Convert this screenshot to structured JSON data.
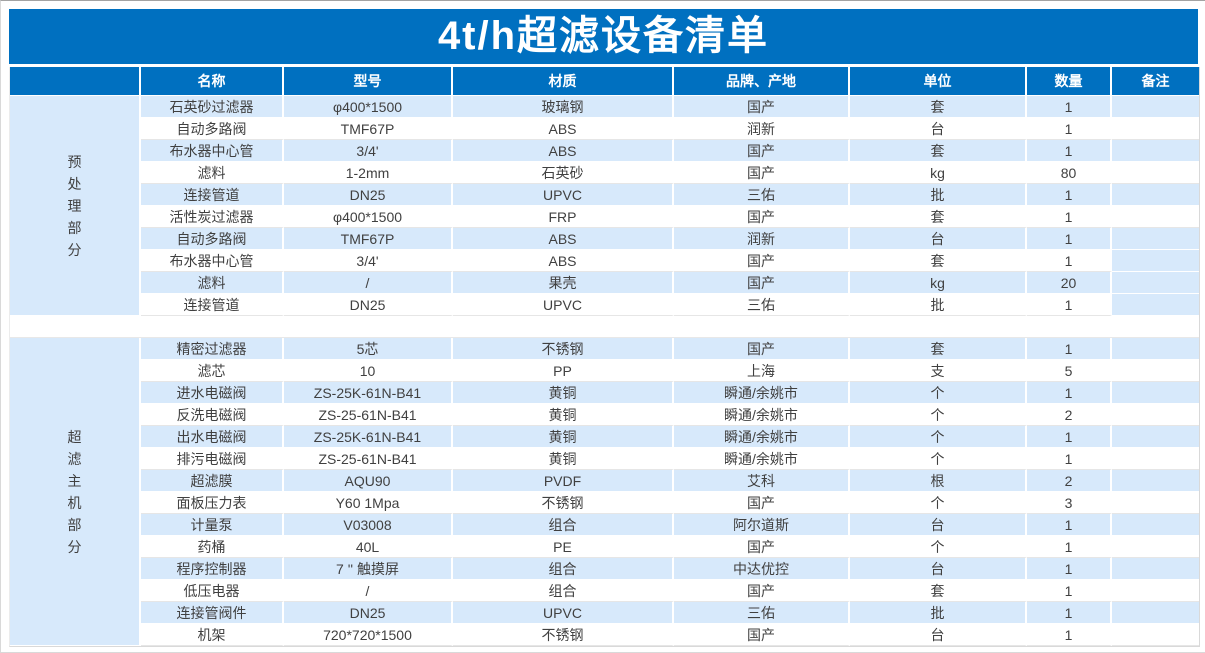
{
  "title": "4t/h超滤设备清单",
  "columns": [
    "名称",
    "型号",
    "材质",
    "品牌、产地",
    "单位",
    "数量",
    "备注"
  ],
  "sections": [
    {
      "label": "预处理部分",
      "label_vertical": "预\n处\n理\n部\n分",
      "remark_shaded_rows": [
        7,
        8,
        9
      ],
      "rows": [
        [
          "石英砂过滤器",
          "φ400*1500",
          "玻璃钢",
          "国产",
          "套",
          "1",
          ""
        ],
        [
          "自动多路阀",
          "TMF67P",
          "ABS",
          "润新",
          "台",
          "1",
          ""
        ],
        [
          "布水器中心管",
          "3/4'",
          "ABS",
          "国产",
          "套",
          "1",
          ""
        ],
        [
          "滤料",
          "1-2mm",
          "石英砂",
          "国产",
          "kg",
          "80",
          ""
        ],
        [
          "连接管道",
          "DN25",
          "UPVC",
          "三佑",
          "批",
          "1",
          ""
        ],
        [
          "活性炭过滤器",
          "φ400*1500",
          "FRP",
          "国产",
          "套",
          "1",
          ""
        ],
        [
          "自动多路阀",
          "TMF67P",
          "ABS",
          "润新",
          "台",
          "1",
          ""
        ],
        [
          "布水器中心管",
          "3/4'",
          "ABS",
          "国产",
          "套",
          "1",
          ""
        ],
        [
          "滤料",
          "/",
          "果壳",
          "国产",
          "kg",
          "20",
          ""
        ],
        [
          "连接管道",
          "DN25",
          "UPVC",
          "三佑",
          "批",
          "1",
          ""
        ]
      ]
    },
    {
      "label": "超滤主机部分",
      "label_vertical": "超\n滤\n主\n机\n部\n分",
      "remark_shaded_rows": [],
      "rows": [
        [
          "精密过滤器",
          "5芯",
          "不锈钢",
          "国产",
          "套",
          "1",
          ""
        ],
        [
          "滤芯",
          "10",
          "PP",
          "上海",
          "支",
          "5",
          ""
        ],
        [
          "进水电磁阀",
          "ZS-25K-61N-B41",
          "黄铜",
          "瞬通/余姚市",
          "个",
          "1",
          ""
        ],
        [
          "反洗电磁阀",
          "ZS-25-61N-B41",
          "黄铜",
          "瞬通/余姚市",
          "个",
          "2",
          ""
        ],
        [
          "出水电磁阀",
          "ZS-25K-61N-B41",
          "黄铜",
          "瞬通/余姚市",
          "个",
          "1",
          ""
        ],
        [
          "排污电磁阀",
          "ZS-25-61N-B41",
          "黄铜",
          "瞬通/余姚市",
          "个",
          "1",
          ""
        ],
        [
          "超滤膜",
          "AQU90",
          "PVDF",
          "艾科",
          "根",
          "2",
          ""
        ],
        [
          "面板压力表",
          "Y60 1Mpa",
          "不锈钢",
          "国产",
          "个",
          "3",
          ""
        ],
        [
          "计量泵",
          "V03008",
          "组合",
          "阿尔道斯",
          "台",
          "1",
          ""
        ],
        [
          "药桶",
          "40L",
          "PE",
          "国产",
          "个",
          "1",
          ""
        ],
        [
          "程序控制器",
          "7 '' 触摸屏",
          "组合",
          "中达优控",
          "台",
          "1",
          ""
        ],
        [
          "低压电器",
          "/",
          "组合",
          "国产",
          "套",
          "1",
          ""
        ],
        [
          "连接管阀件",
          "DN25",
          "UPVC",
          "三佑",
          "批",
          "1",
          ""
        ],
        [
          "机架",
          "720*720*1500",
          "不锈钢",
          "国产",
          "台",
          "1",
          ""
        ]
      ]
    }
  ],
  "colors": {
    "header_blue": "#0070C0",
    "band_blue": "#D7E9FB",
    "cell_text": "#404040"
  }
}
